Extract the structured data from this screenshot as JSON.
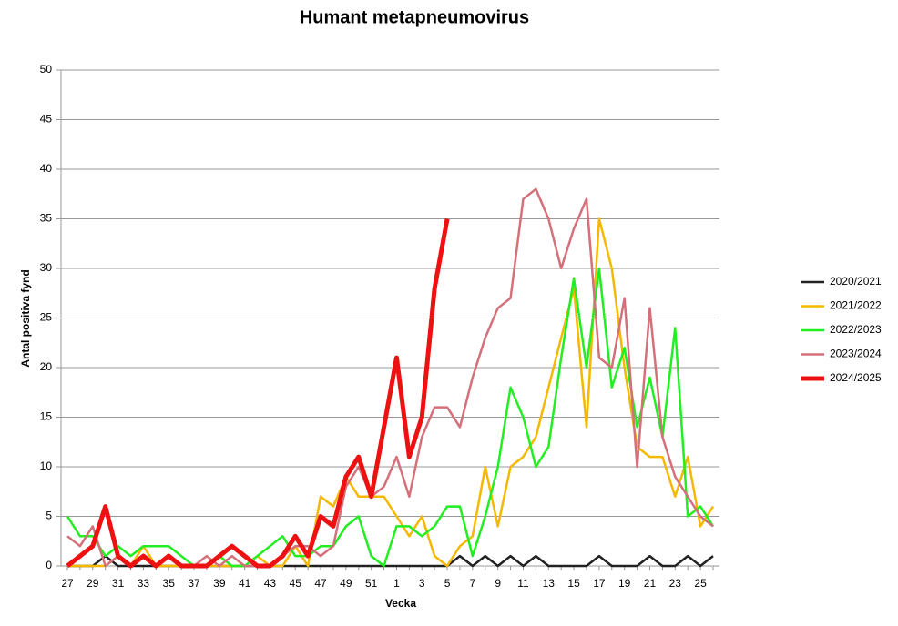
{
  "chart_data": {
    "type": "line",
    "title": "Humant metapneumovirus",
    "x_label": "Vecka",
    "y_label": "Antal positiva fynd",
    "categories": [
      27,
      null,
      29,
      null,
      31,
      null,
      33,
      null,
      35,
      null,
      37,
      null,
      39,
      null,
      41,
      null,
      43,
      null,
      45,
      null,
      47,
      null,
      49,
      null,
      51,
      null,
      1,
      null,
      3,
      null,
      5,
      null,
      7,
      null,
      9,
      null,
      11,
      null,
      13,
      null,
      15,
      null,
      17,
      null,
      19,
      null,
      21,
      null,
      23,
      null,
      25,
      null
    ],
    "ylim": [
      0,
      50
    ],
    "yticks": [
      0,
      5,
      10,
      15,
      20,
      25,
      30,
      35,
      40,
      45,
      50
    ],
    "grid": true,
    "legend": "right",
    "series": [
      {
        "name": "2020/2021",
        "color": "#222222",
        "values": [
          0,
          0,
          0,
          1,
          0,
          0,
          0,
          0,
          0,
          0,
          0,
          0,
          0,
          0,
          0,
          0,
          0,
          0,
          0,
          0,
          0,
          0,
          0,
          0,
          0,
          0,
          0,
          0,
          0,
          0,
          0,
          1,
          0,
          1,
          0,
          1,
          0,
          1,
          0,
          0,
          0,
          0,
          1,
          0,
          0,
          0,
          1,
          0,
          0,
          1,
          0,
          1
        ]
      },
      {
        "name": "2021/2022",
        "color": "#f5b800",
        "values": [
          0,
          0,
          0,
          0,
          1,
          0,
          2,
          0,
          0,
          0,
          0,
          0,
          0,
          0,
          0,
          1,
          0,
          0,
          2,
          0,
          7,
          6,
          9,
          7,
          7,
          7,
          5,
          3,
          5,
          1,
          0,
          2,
          3,
          10,
          4,
          10,
          11,
          13,
          18,
          23,
          28,
          14,
          35,
          30,
          20,
          12,
          11,
          11,
          7,
          11,
          4,
          6
        ]
      },
      {
        "name": "2022/2023",
        "color": "#22ee22",
        "values": [
          5,
          3,
          3,
          1,
          2,
          1,
          2,
          2,
          2,
          1,
          0,
          0,
          1,
          0,
          0,
          1,
          2,
          3,
          1,
          1,
          2,
          2,
          4,
          5,
          1,
          0,
          4,
          4,
          3,
          4,
          6,
          6,
          1,
          5,
          10,
          18,
          15,
          10,
          12,
          21,
          29,
          20,
          30,
          18,
          22,
          14,
          19,
          13,
          24,
          5,
          6,
          4
        ]
      },
      {
        "name": "2023/2024",
        "color": "#d4707a",
        "values": [
          3,
          2,
          4,
          0,
          1,
          0,
          1,
          0,
          1,
          0,
          0,
          1,
          0,
          1,
          0,
          0,
          0,
          1,
          2,
          2,
          1,
          2,
          8,
          10,
          7,
          8,
          11,
          7,
          13,
          16,
          16,
          14,
          19,
          23,
          26,
          27,
          37,
          38,
          35,
          30,
          34,
          37,
          21,
          20,
          27,
          10,
          26,
          13,
          9,
          7,
          5,
          4
        ]
      },
      {
        "name": "2024/2025",
        "color": "#ee1111",
        "values": [
          0,
          1,
          2,
          6,
          1,
          0,
          1,
          0,
          1,
          0,
          0,
          0,
          1,
          2,
          1,
          0,
          0,
          1,
          3,
          1,
          5,
          4,
          9,
          11,
          7,
          14,
          21,
          11,
          15,
          28,
          35,
          null,
          null,
          null,
          null,
          null,
          null,
          null,
          null,
          null,
          null,
          null,
          null,
          null,
          null,
          null,
          null,
          null,
          null,
          null,
          null,
          null
        ]
      }
    ]
  }
}
